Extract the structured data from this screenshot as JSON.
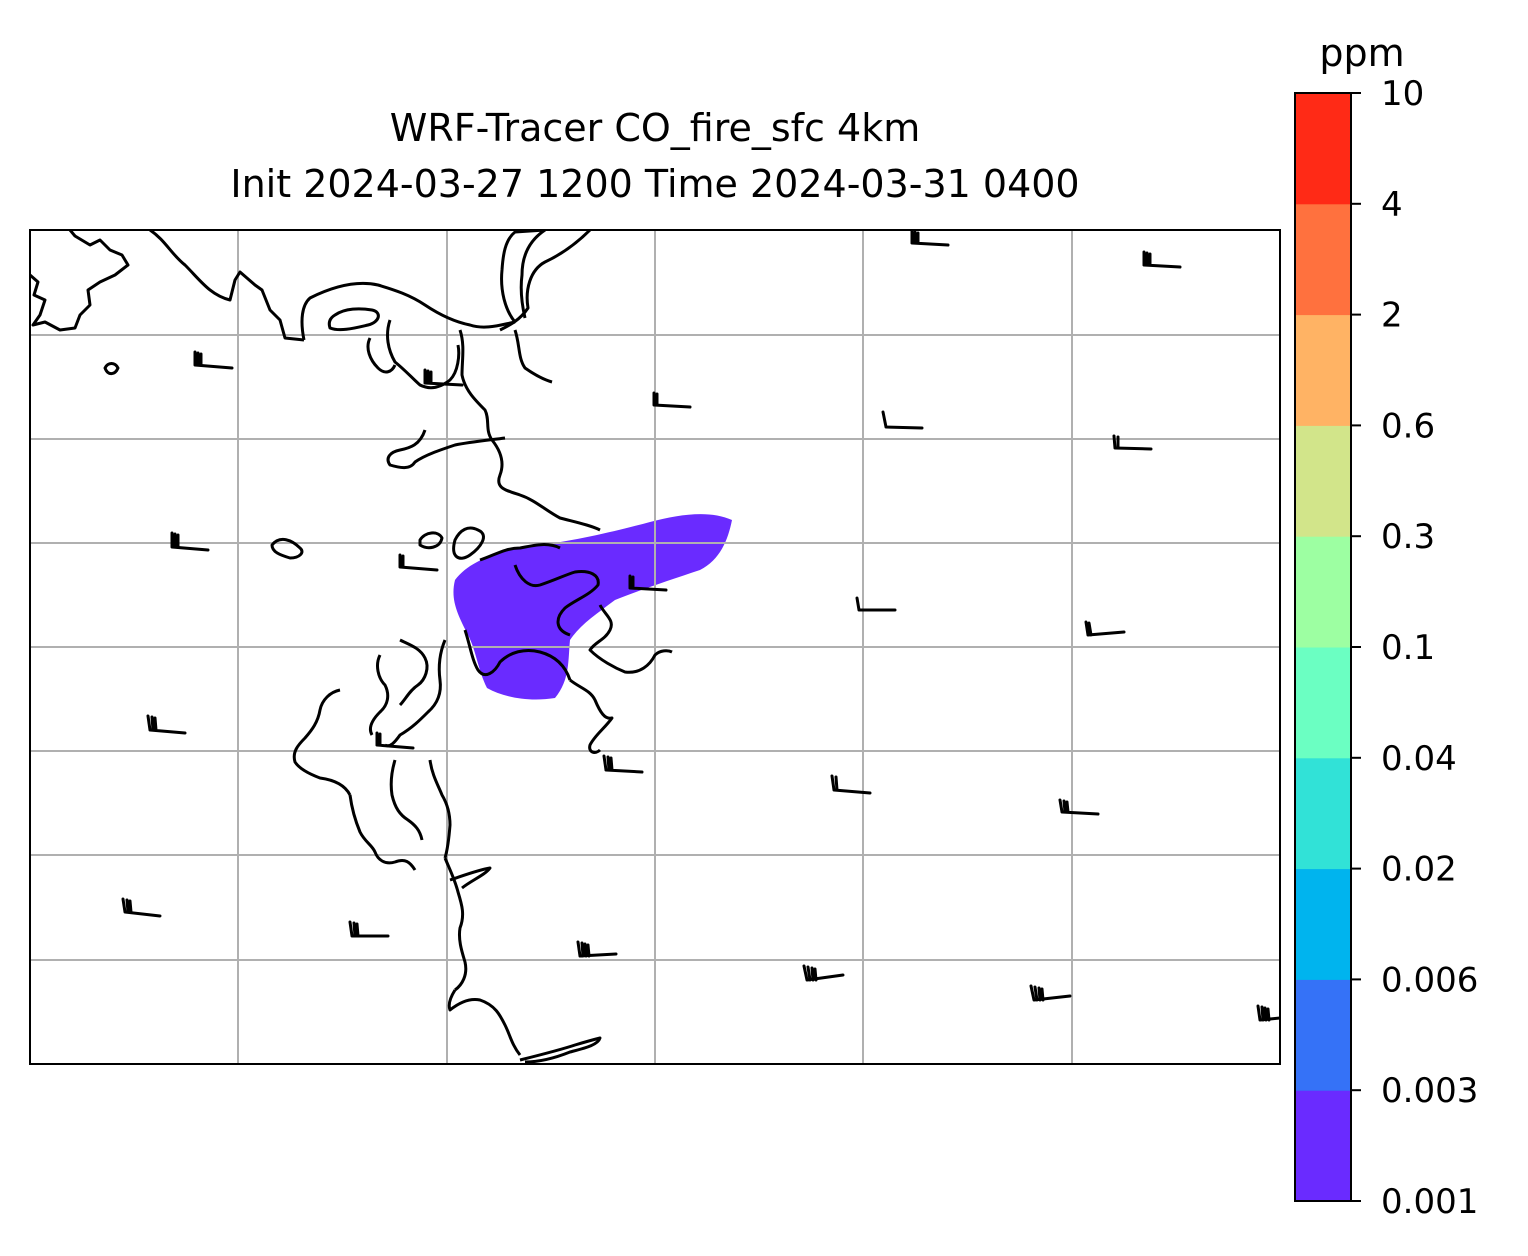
{
  "title_line1": "WRF-Tracer CO_fire_sfc 4km",
  "title_line2": "Init 2024-03-27 1200 Time 2024-03-31 0400",
  "colorbar": {
    "unit": "ppm",
    "levels": [
      "0.001",
      "0.003",
      "0.006",
      "0.02",
      "0.04",
      "0.1",
      "0.3",
      "0.6",
      "2",
      "4",
      "10"
    ],
    "colors": [
      "#6a2bff",
      "#3572f7",
      "#00b4ee",
      "#31e2d7",
      "#6bffc2",
      "#9dffa2",
      "#d2e58a",
      "#ffb364",
      "#ff713e",
      "#ff2a16"
    ]
  },
  "map": {
    "plume_color": "#6a2bff",
    "plume_level": "0.001-0.003 ppm",
    "gridlines": true,
    "coastline_color": "#000000",
    "wind_barbs": true
  }
}
